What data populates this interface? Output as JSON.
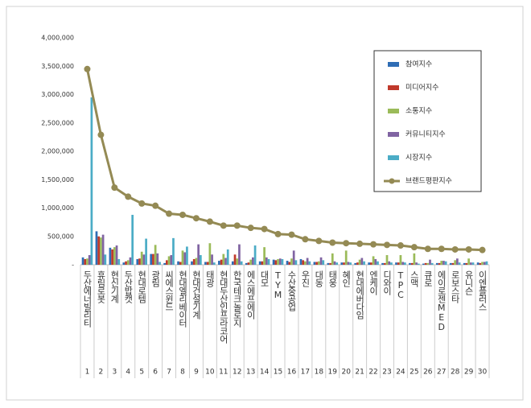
{
  "chart_data": {
    "type": "bar",
    "categories": [
      "두산에너빌리티",
      "휴림로봇",
      "현신기계",
      "두산밥캣",
      "현대로템",
      "광림",
      "씨에스윈드",
      "현대엘리베이터",
      "현대건설기계",
      "태광",
      "현대두산인프라코어",
      "한국테크놀로지",
      "에스에프에이",
      "대모",
      "TYM",
      "수산중공업",
      "우진",
      "대동",
      "태웅",
      "혜인",
      "현대에버다임",
      "엔케이",
      "디와이",
      "TPC",
      "스맥",
      "큐로",
      "에이로젠MED",
      "로보스타",
      "유니슨",
      "이엔플러스"
    ],
    "category_numbers": [
      1,
      2,
      3,
      4,
      5,
      6,
      7,
      8,
      9,
      10,
      11,
      12,
      13,
      14,
      15,
      16,
      17,
      18,
      19,
      20,
      21,
      22,
      23,
      24,
      25,
      26,
      27,
      28,
      29,
      30
    ],
    "series": [
      {
        "name": "참여지수",
        "color": "#2f6db5",
        "values": [
          130000,
          590000,
          300000,
          40000,
          100000,
          190000,
          30000,
          60000,
          60000,
          50000,
          70000,
          60000,
          30000,
          60000,
          90000,
          70000,
          100000,
          50000,
          30000,
          40000,
          30000,
          40000,
          30000,
          40000,
          30000,
          20000,
          30000,
          30000,
          30000,
          40000
        ]
      },
      {
        "name": "미디어지수",
        "color": "#c0392b",
        "values": [
          100000,
          500000,
          270000,
          60000,
          110000,
          190000,
          80000,
          50000,
          100000,
          50000,
          90000,
          180000,
          40000,
          60000,
          80000,
          50000,
          80000,
          50000,
          30000,
          40000,
          40000,
          40000,
          30000,
          40000,
          30000,
          30000,
          30000,
          30000,
          30000,
          30000
        ]
      },
      {
        "name": "소통지수",
        "color": "#9bbb59",
        "values": [
          110000,
          480000,
          310000,
          80000,
          230000,
          350000,
          150000,
          250000,
          120000,
          380000,
          190000,
          110000,
          90000,
          310000,
          100000,
          110000,
          60000,
          60000,
          200000,
          250000,
          90000,
          150000,
          170000,
          170000,
          200000,
          30000,
          70000,
          80000,
          110000,
          50000
        ]
      },
      {
        "name": "커뮤니티지수",
        "color": "#8064a2",
        "values": [
          170000,
          530000,
          340000,
          130000,
          180000,
          200000,
          170000,
          220000,
          360000,
          180000,
          120000,
          360000,
          130000,
          130000,
          110000,
          250000,
          120000,
          130000,
          60000,
          50000,
          120000,
          100000,
          60000,
          50000,
          40000,
          90000,
          70000,
          110000,
          40000,
          50000
        ]
      },
      {
        "name": "시장지수",
        "color": "#4bacc6",
        "values": [
          2950000,
          180000,
          100000,
          880000,
          460000,
          50000,
          470000,
          320000,
          170000,
          40000,
          270000,
          60000,
          340000,
          100000,
          100000,
          80000,
          60000,
          80000,
          40000,
          40000,
          60000,
          60000,
          40000,
          40000,
          20000,
          30000,
          60000,
          40000,
          40000,
          60000
        ]
      },
      {
        "name": "브랜드평판지수",
        "color": "#948a54",
        "chart": "line",
        "values": [
          3450000,
          2290000,
          1360000,
          1200000,
          1080000,
          1040000,
          900000,
          880000,
          820000,
          760000,
          690000,
          690000,
          650000,
          630000,
          540000,
          530000,
          450000,
          420000,
          390000,
          380000,
          370000,
          360000,
          350000,
          340000,
          310000,
          280000,
          280000,
          270000,
          270000,
          260000
        ]
      }
    ],
    "ylim": [
      0,
      4000000
    ],
    "yticks": [
      {
        "value": 0,
        "label": "-"
      },
      {
        "value": 500000,
        "label": "500,000"
      },
      {
        "value": 1000000,
        "label": "1,000,000"
      },
      {
        "value": 1500000,
        "label": "1,500,000"
      },
      {
        "value": 2000000,
        "label": "2,000,000"
      },
      {
        "value": 2500000,
        "label": "2,500,000"
      },
      {
        "value": 3000000,
        "label": "3,000,000"
      },
      {
        "value": 3500000,
        "label": "3,500,000"
      },
      {
        "value": 4000000,
        "label": "4,000,000"
      }
    ],
    "grid": false,
    "legend": "upper right"
  }
}
